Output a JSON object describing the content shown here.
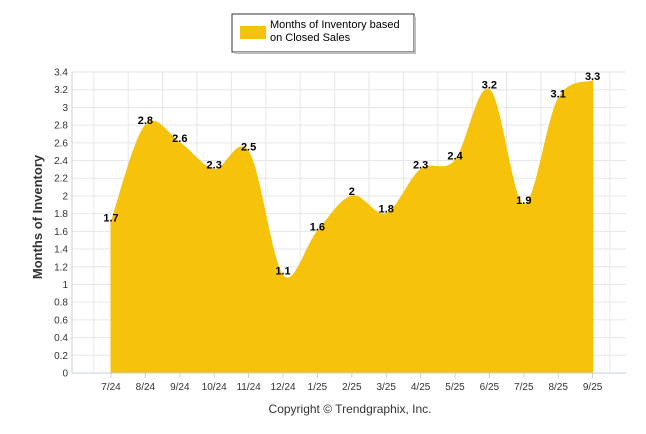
{
  "chart_data": {
    "type": "area",
    "title": "",
    "xlabel": "",
    "ylabel": "Months of Inventory",
    "ylim": [
      0,
      3.4
    ],
    "ytick_step": 0.2,
    "categories": [
      "7/24",
      "8/24",
      "9/24",
      "10/24",
      "11/24",
      "12/24",
      "1/25",
      "2/25",
      "3/25",
      "4/25",
      "5/25",
      "6/25",
      "7/25",
      "8/25",
      "9/25"
    ],
    "series": [
      {
        "name": "Months of Inventory based on Closed Sales",
        "legend_lines": [
          "Months of Inventory based",
          "on Closed Sales"
        ],
        "values": [
          1.7,
          2.8,
          2.6,
          2.3,
          2.5,
          1.1,
          1.6,
          2.0,
          1.8,
          2.3,
          2.4,
          3.2,
          1.9,
          3.1,
          3.3
        ],
        "labels": [
          "1.7",
          "2.8",
          "2.6",
          "2.3",
          "2.5",
          "1.1",
          "1.6",
          "2",
          "1.8",
          "2.3",
          "2.4",
          "3.2",
          "1.9",
          "3.1",
          "3.3"
        ],
        "color": "#F6C20A"
      }
    ],
    "grid": true,
    "legend_position": "top-center",
    "footer": "Copyright © Trendgraphix, Inc."
  },
  "colors": {
    "grid": "#E6E6E6",
    "axis": "#C0D0E0",
    "legend_border": "#333333"
  }
}
